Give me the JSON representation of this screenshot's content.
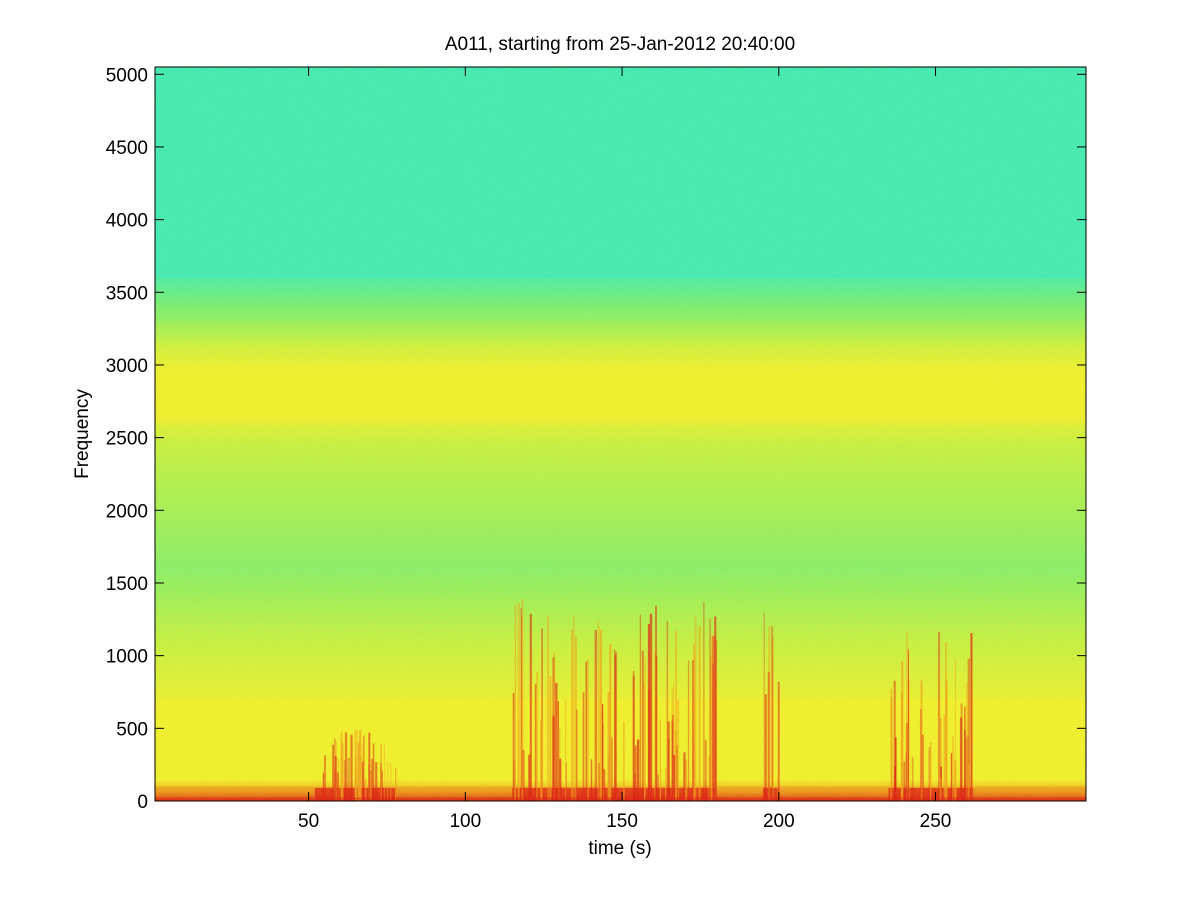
{
  "chart_data": {
    "type": "heatmap",
    "title": "A011, starting from 25-Jan-2012 20:40:00",
    "xlabel": "time (s)",
    "ylabel": "Frequency",
    "xlim": [
      1,
      298
    ],
    "ylim": [
      0,
      5050
    ],
    "xticks": [
      50,
      100,
      150,
      200,
      250
    ],
    "xtick_labels": [
      "50",
      "100",
      "150",
      "200",
      "250"
    ],
    "yticks": [
      0,
      500,
      1000,
      1500,
      2000,
      2500,
      3000,
      3500,
      4000,
      4500,
      5000
    ],
    "ytick_labels": [
      "0",
      "500",
      "1000",
      "1500",
      "2000",
      "2500",
      "3000",
      "3500",
      "4000",
      "4500",
      "5000"
    ],
    "grid": false,
    "colormap": "jet",
    "colors": {
      "cyan_green": "#3ff0b0",
      "green": "#7af26a",
      "yellow_green": "#c8f53a",
      "yellow": "#f5f524",
      "orange": "#f5a010",
      "red": "#e01808"
    },
    "intensity_bands": [
      {
        "freq_range": [
          3600,
          5050
        ],
        "level": "low",
        "color": "cyan_green"
      },
      {
        "freq_range": [
          3300,
          3600
        ],
        "level": "low-medium",
        "color": "green"
      },
      {
        "freq_range": [
          2600,
          3150
        ],
        "level": "medium-high",
        "color": "yellow"
      },
      {
        "freq_range": [
          700,
          2600
        ],
        "level": "medium",
        "color": "yellow_green"
      },
      {
        "freq_range": [
          0,
          700
        ],
        "level": "high",
        "color": "yellow"
      },
      {
        "freq_range": [
          0,
          100
        ],
        "level": "very high",
        "color": "red"
      }
    ],
    "activity_bursts": [
      {
        "time_range": [
          52,
          78
        ],
        "max_freq": 500
      },
      {
        "time_range": [
          115,
          180
        ],
        "max_freq": 1400
      },
      {
        "time_range": [
          195,
          200
        ],
        "max_freq": 1400
      },
      {
        "time_range": [
          235,
          262
        ],
        "max_freq": 1200
      }
    ]
  }
}
